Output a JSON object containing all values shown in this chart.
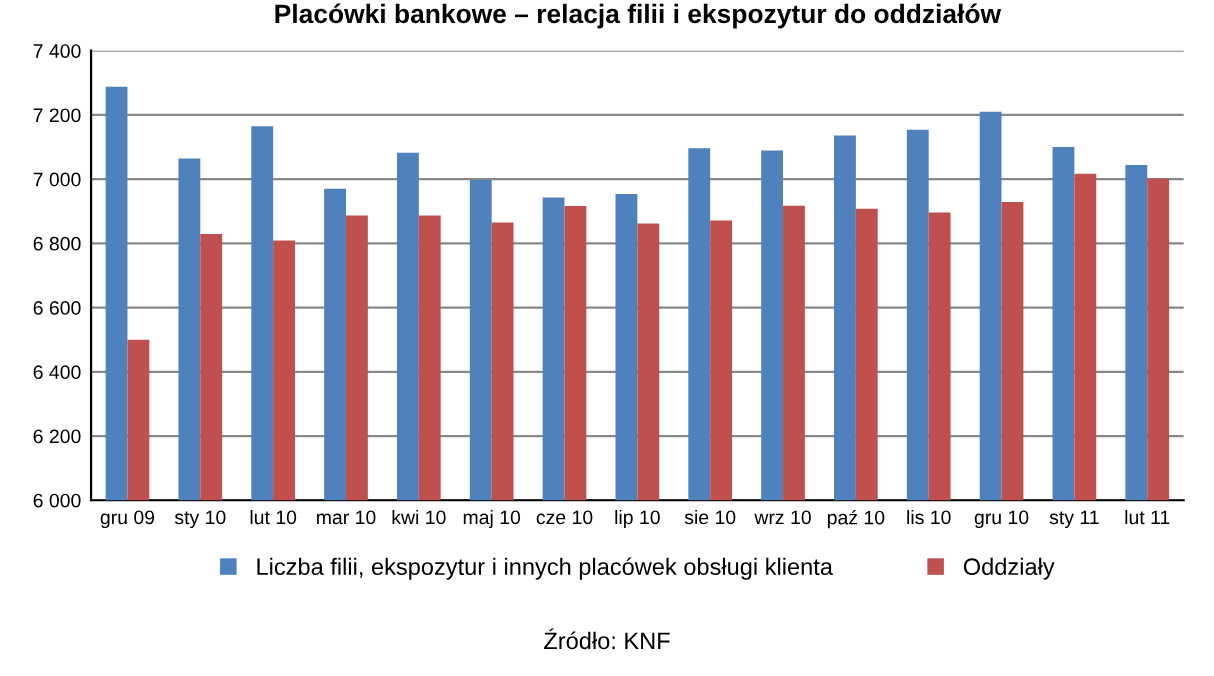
{
  "chart_data": {
    "type": "bar",
    "title": "Placówki bankowe – relacja filii i ekspozytur do oddziałów",
    "categories": [
      "gru 09",
      "sty 10",
      "lut 10",
      "mar 10",
      "kwi 10",
      "maj 10",
      "cze 10",
      "lip 10",
      "sie 10",
      "wrz 10",
      "paź 10",
      "lis 10",
      "gru 10",
      "sty 11",
      "lut 11"
    ],
    "series": [
      {
        "name": "Liczba filii, ekspozytur i innych placówek obsługi klienta",
        "color": "#4f81bd",
        "values": [
          7288,
          7064,
          7165,
          6970,
          7082,
          6997,
          6943,
          6954,
          7096,
          7089,
          7136,
          7154,
          7210,
          7100,
          7044
        ]
      },
      {
        "name": "Oddziały",
        "color": "#c0504d",
        "values": [
          6500,
          6829,
          6809,
          6887,
          6887,
          6865,
          6916,
          6862,
          6871,
          6917,
          6908,
          6896,
          6929,
          7017,
          7002
        ]
      }
    ],
    "ylim": [
      6000,
      7400
    ],
    "yticks": [
      {
        "value": 6000,
        "label": "6 000"
      },
      {
        "value": 6200,
        "label": "6 200"
      },
      {
        "value": 6400,
        "label": "6 400"
      },
      {
        "value": 6600,
        "label": "6 600"
      },
      {
        "value": 6800,
        "label": "6 800"
      },
      {
        "value": 7000,
        "label": "7 000"
      },
      {
        "value": 7200,
        "label": "7 200"
      },
      {
        "value": 7400,
        "label": "7 400"
      }
    ],
    "grid": "y",
    "legend": "bottom",
    "annotations": [
      "Źródło: KNF"
    ]
  }
}
